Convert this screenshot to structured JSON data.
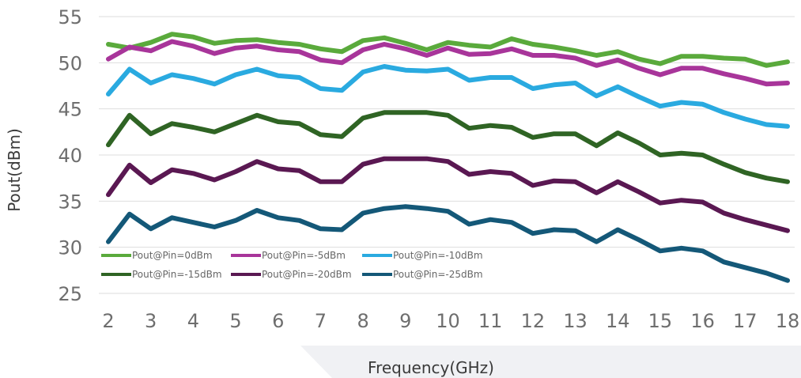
{
  "chart_data": {
    "type": "line",
    "title": "",
    "xlabel": "Frequency(GHz)",
    "ylabel": "Pout(dBm)",
    "xlim": [
      2,
      18
    ],
    "ylim": [
      25,
      55
    ],
    "xticks": [
      2,
      3,
      4,
      5,
      6,
      7,
      8,
      9,
      10,
      11,
      12,
      13,
      14,
      15,
      16,
      17,
      18
    ],
    "yticks": [
      25,
      30,
      35,
      40,
      45,
      50,
      55
    ],
    "grid": "horizontal",
    "legend_placement": "lower-left inside plot",
    "x": [
      2,
      2.5,
      3,
      3.5,
      4,
      4.5,
      5,
      5.5,
      6,
      6.5,
      7,
      7.5,
      8,
      8.5,
      9,
      9.5,
      10,
      10.5,
      11,
      11.5,
      12,
      12.5,
      13,
      13.5,
      14,
      14.5,
      15,
      15.5,
      16,
      16.5,
      17,
      17.5,
      18
    ],
    "series": [
      {
        "name": "Pout@Pin=0dBm",
        "color": "#5aaa3c",
        "values": [
          52.0,
          51.6,
          52.2,
          53.1,
          52.8,
          52.1,
          52.4,
          52.5,
          52.2,
          52.0,
          51.5,
          51.2,
          52.4,
          52.7,
          52.1,
          51.4,
          52.2,
          51.9,
          51.7,
          52.6,
          52.0,
          51.7,
          51.3,
          50.8,
          51.2,
          50.4,
          49.9,
          50.7,
          50.7,
          50.5,
          50.4,
          49.7,
          50.1
        ]
      },
      {
        "name": "Pout@Pin=-5dBm",
        "color": "#a8359a",
        "values": [
          50.4,
          51.7,
          51.3,
          52.3,
          51.8,
          51.0,
          51.6,
          51.8,
          51.4,
          51.2,
          50.3,
          50.0,
          51.4,
          52.0,
          51.5,
          50.8,
          51.6,
          50.9,
          51.0,
          51.5,
          50.8,
          50.8,
          50.5,
          49.7,
          50.3,
          49.4,
          48.7,
          49.4,
          49.4,
          48.8,
          48.3,
          47.7,
          47.8
        ]
      },
      {
        "name": "Pout@Pin=-10dBm",
        "color": "#2aaae0",
        "values": [
          46.6,
          49.3,
          47.8,
          48.7,
          48.3,
          47.7,
          48.7,
          49.3,
          48.6,
          48.4,
          47.2,
          47.0,
          49.0,
          49.6,
          49.2,
          49.1,
          49.3,
          48.1,
          48.4,
          48.4,
          47.2,
          47.6,
          47.8,
          46.4,
          47.4,
          46.3,
          45.3,
          45.7,
          45.5,
          44.6,
          43.9,
          43.3,
          43.1
        ]
      },
      {
        "name": "Pout@Pin=-15dBm",
        "color": "#2f6424",
        "values": [
          41.1,
          44.3,
          42.3,
          43.4,
          43.0,
          42.5,
          43.4,
          44.3,
          43.6,
          43.4,
          42.2,
          42.0,
          44.0,
          44.6,
          44.6,
          44.6,
          44.3,
          42.9,
          43.2,
          43.0,
          41.9,
          42.3,
          42.3,
          41.0,
          42.4,
          41.3,
          40.0,
          40.2,
          40.0,
          39.0,
          38.1,
          37.5,
          37.1
        ]
      },
      {
        "name": "Pout@Pin=-20dBm",
        "color": "#5a1852",
        "values": [
          35.7,
          38.9,
          37.0,
          38.4,
          38.0,
          37.3,
          38.2,
          39.3,
          38.5,
          38.3,
          37.1,
          37.1,
          39.0,
          39.6,
          39.6,
          39.6,
          39.3,
          37.9,
          38.2,
          38.0,
          36.7,
          37.2,
          37.1,
          35.9,
          37.1,
          36.0,
          34.8,
          35.1,
          34.9,
          33.7,
          33.0,
          32.4,
          31.8
        ]
      },
      {
        "name": "Pout@Pin=-25dBm",
        "color": "#145878",
        "values": [
          30.6,
          33.6,
          32.0,
          33.2,
          32.7,
          32.2,
          32.9,
          34.0,
          33.2,
          32.9,
          32.0,
          31.9,
          33.7,
          34.2,
          34.4,
          34.2,
          33.9,
          32.5,
          33.0,
          32.7,
          31.5,
          31.9,
          31.8,
          30.6,
          31.9,
          30.8,
          29.6,
          29.9,
          29.6,
          28.4,
          27.8,
          27.2,
          26.4
        ]
      }
    ]
  }
}
